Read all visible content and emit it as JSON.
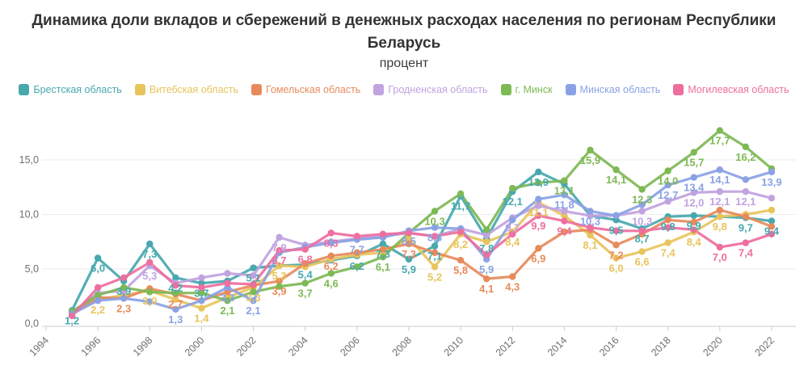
{
  "header": {
    "title": "Динамика доли вкладов и сбережений в денежных расходах населения по регионам Республики Беларусь",
    "subtitle": "процент"
  },
  "chart_data": {
    "type": "line",
    "title": "Динамика доли вкладов и сбережений в денежных расходах населения по регионам Республики Беларусь",
    "subtitle": "процент",
    "grid": "horizontal",
    "legend_position": "top",
    "x": [
      1995,
      1996,
      1997,
      1998,
      1999,
      2000,
      2001,
      2002,
      2003,
      2004,
      2005,
      2006,
      2007,
      2008,
      2009,
      2010,
      2011,
      2012,
      2013,
      2014,
      2015,
      2016,
      2017,
      2018,
      2019,
      2020,
      2021,
      2022
    ],
    "x_tick_labels": [
      "1994",
      "1996",
      "1998",
      "2000",
      "2002",
      "2004",
      "2006",
      "2008",
      "2010",
      "2012",
      "2014",
      "2016",
      "2018",
      "2020",
      "2022"
    ],
    "x_tick_years": [
      1994,
      1996,
      1998,
      2000,
      2002,
      2004,
      2006,
      2008,
      2010,
      2012,
      2014,
      2016,
      2018,
      2020,
      2022
    ],
    "y_ticks": [
      {
        "v": 0,
        "label": "0,0"
      },
      {
        "v": 5,
        "label": "5,0"
      },
      {
        "v": 10,
        "label": "10,0"
      },
      {
        "v": 15,
        "label": "15,0"
      }
    ],
    "ylim": [
      0,
      19
    ],
    "series": [
      {
        "name": "Брестская область",
        "color": "#47A8AE",
        "values": [
          1.2,
          6.0,
          3.9,
          7.3,
          4.2,
          3.7,
          3.9,
          5.1,
          5.3,
          5.4,
          5.8,
          6.2,
          7.3,
          5.9,
          7.1,
          11.7,
          7.8,
          12.1,
          13.9,
          12.8,
          9.9,
          9.5,
          8.7,
          9.8,
          9.9,
          9.8,
          9.7,
          9.4
        ],
        "labels": [
          "1,2",
          "6,0",
          "3,9",
          "7,3",
          "4,2",
          "3,7",
          null,
          "5,1",
          null,
          "5,4",
          null,
          "6,2",
          "7,3",
          "5,9",
          "7,1",
          "11,7",
          "7,8",
          "12,1",
          "13,9",
          null,
          null,
          "9,5",
          "8,7",
          "9,8",
          "9,9",
          null,
          "9,7",
          "9,4"
        ]
      },
      {
        "name": "Витебская область",
        "color": "#E8C45C",
        "values": [
          0.9,
          2.2,
          2.6,
          3.0,
          2.2,
          1.4,
          2.4,
          3.3,
          5.3,
          5.2,
          5.9,
          6.3,
          6.5,
          7.8,
          5.2,
          8.2,
          7.5,
          8.4,
          11.1,
          9.9,
          8.1,
          6.0,
          6.6,
          7.4,
          8.4,
          9.8,
          10.0,
          10.4
        ],
        "labels": [
          null,
          "2,2",
          null,
          "3,0",
          null,
          "1,4",
          null,
          "3,3",
          "5,3",
          null,
          null,
          null,
          null,
          null,
          "5,2",
          "8,2",
          null,
          "8,4",
          "11,1",
          null,
          "8,1",
          "6,0",
          "6,6",
          "7,4",
          "8,4",
          "9,8",
          null,
          null
        ]
      },
      {
        "name": "Гомельская область",
        "color": "#E78A5B",
        "values": [
          0.8,
          2.4,
          2.3,
          3.2,
          2.7,
          2.1,
          2.9,
          3.5,
          3.9,
          5.5,
          6.2,
          6.5,
          6.8,
          7.3,
          6.5,
          5.8,
          4.1,
          4.3,
          6.9,
          8.4,
          8.6,
          7.2,
          8.2,
          9.5,
          9.3,
          10.4,
          9.8,
          8.9
        ],
        "labels": [
          null,
          null,
          "2,3",
          null,
          "2,7",
          null,
          null,
          null,
          "3,9",
          null,
          "6,2",
          null,
          null,
          "7,3",
          null,
          "5,8",
          "4,1",
          "4,3",
          "6,9",
          null,
          null,
          "7,2",
          null,
          null,
          null,
          null,
          null,
          null
        ]
      },
      {
        "name": "Гродненская область",
        "color": "#C1A3E0",
        "values": [
          1.0,
          2.8,
          3.0,
          5.3,
          3.7,
          4.2,
          4.6,
          4.4,
          7.9,
          7.2,
          7.5,
          7.8,
          8.0,
          8.3,
          8.0,
          8.7,
          8.1,
          9.7,
          10.8,
          10.3,
          9.9,
          9.9,
          10.3,
          11.2,
          12.0,
          12.1,
          12.1,
          11.5
        ],
        "labels": [
          null,
          null,
          null,
          "5,3",
          null,
          null,
          null,
          null,
          "7,9",
          null,
          null,
          null,
          null,
          null,
          null,
          null,
          null,
          "9,7",
          null,
          null,
          null,
          null,
          "10,3",
          null,
          "12,0",
          "12,1",
          "12,1",
          null
        ]
      },
      {
        "name": "г. Минск",
        "color": "#7DB954",
        "values": [
          1.1,
          2.6,
          3.3,
          2.9,
          2.8,
          2.8,
          2.1,
          2.9,
          3.4,
          3.7,
          4.6,
          5.2,
          6.1,
          8.3,
          10.3,
          11.9,
          8.6,
          12.4,
          12.9,
          13.1,
          15.9,
          14.1,
          12.3,
          14.0,
          15.7,
          17.7,
          16.2,
          14.2
        ],
        "labels": [
          null,
          null,
          null,
          null,
          null,
          null,
          "2,1",
          null,
          null,
          "3,7",
          "4,6",
          null,
          "6,1",
          null,
          "10,3",
          null,
          null,
          null,
          null,
          "13,1",
          "15,9",
          "14,1",
          "12,3",
          "14,0",
          "15,7",
          "17,7",
          "16,2",
          null
        ]
      },
      {
        "name": "Минская область",
        "color": "#8AA2E5",
        "values": [
          0.9,
          2.1,
          2.3,
          2.0,
          1.3,
          2.1,
          3.3,
          2.1,
          6.5,
          7.0,
          7.4,
          7.7,
          7.9,
          8.5,
          8.8,
          8.7,
          5.9,
          9.5,
          11.4,
          11.8,
          10.3,
          9.9,
          10.9,
          12.7,
          13.4,
          14.1,
          13.2,
          13.9
        ],
        "labels": [
          null,
          null,
          null,
          null,
          "1,3",
          null,
          "3,3",
          "2,1",
          null,
          null,
          null,
          "7,7",
          null,
          "8,5",
          "8,8",
          null,
          "5,9",
          null,
          null,
          "11,8",
          "10,3",
          null,
          null,
          "12,7",
          "13,4",
          "14,1",
          null,
          "13,9"
        ]
      },
      {
        "name": "Могилевская область",
        "color": "#EE6E9E",
        "values": [
          0.7,
          3.3,
          4.2,
          5.6,
          3.5,
          3.3,
          3.7,
          3.6,
          6.7,
          6.8,
          8.3,
          8.0,
          8.2,
          8.3,
          8.0,
          8.4,
          6.3,
          8.2,
          9.9,
          9.4,
          8.8,
          8.5,
          8.5,
          8.8,
          8.6,
          7.0,
          7.4,
          8.2
        ],
        "labels": [
          null,
          null,
          null,
          null,
          null,
          null,
          null,
          null,
          "6,7",
          "6,8",
          "8,3",
          null,
          null,
          null,
          null,
          null,
          null,
          null,
          "9,9",
          "9,4",
          null,
          null,
          null,
          null,
          null,
          "7,0",
          "7,4",
          null
        ]
      }
    ]
  },
  "style": {
    "grid_color": "#ebebeb",
    "axis_color": "#cccccc",
    "tick_text_color": "#6f6f6f"
  }
}
